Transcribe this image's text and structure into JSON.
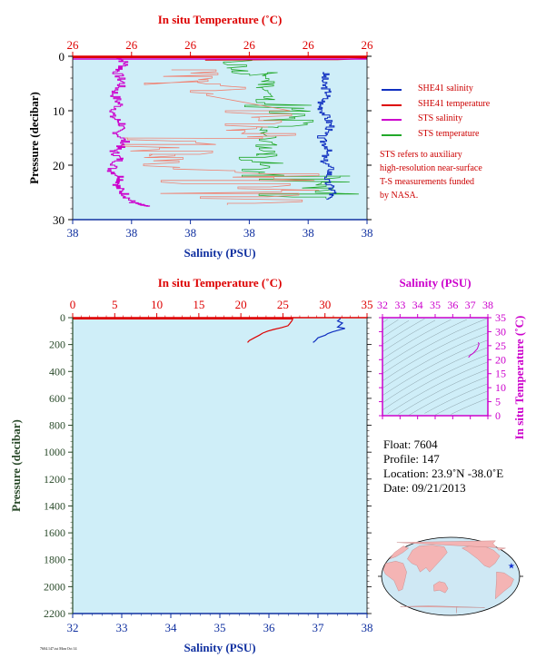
{
  "colors": {
    "plot_bg": "#cfeef8",
    "red": "#dd0000",
    "blue": "#1030c0",
    "magenta": "#cc00cc",
    "green": "#22a82a",
    "salmon": "#f08070",
    "dark_green": "#2a4a2a",
    "blue_axis": "#1030a0"
  },
  "chart_data": [
    {
      "type": "line",
      "panel": "near-surface",
      "top_axis_label": "In situ Temperature (˚C)",
      "top_tick_labels": [
        "26",
        "26",
        "26",
        "26",
        "26",
        "26"
      ],
      "bottom_axis_label": "Salinity (PSU)",
      "bottom_tick_labels": [
        "38",
        "38",
        "38",
        "38",
        "38",
        "38"
      ],
      "ylabel": "Pressure (decibar)",
      "y_tick_labels": [
        "0",
        "10",
        "20",
        "30"
      ],
      "ylim": [
        30,
        0
      ],
      "series": [
        {
          "name": "STS salinity",
          "x_units": "bottom axis fraction (0-1)",
          "points": [
            [
              0.16,
              0.2
            ],
            [
              0.18,
              1.5
            ],
            [
              0.15,
              3
            ],
            [
              0.17,
              5
            ],
            [
              0.14,
              7
            ],
            [
              0.16,
              9
            ],
            [
              0.13,
              11
            ],
            [
              0.17,
              12.5
            ],
            [
              0.15,
              14
            ],
            [
              0.18,
              16
            ],
            [
              0.14,
              17.5
            ],
            [
              0.16,
              19
            ],
            [
              0.13,
              21
            ],
            [
              0.17,
              22.5
            ],
            [
              0.15,
              24
            ],
            [
              0.18,
              25.5
            ],
            [
              0.2,
              26.8
            ],
            [
              0.23,
              27.3
            ],
            [
              0.25,
              27.6
            ]
          ]
        },
        {
          "name": "STS temperature",
          "x_units": "top axis fraction (0-1)",
          "points": [
            [
              0.0,
              0.5
            ],
            [
              0.4,
              1
            ],
            [
              0.55,
              2
            ],
            [
              0.65,
              4
            ],
            [
              0.55,
              6
            ],
            [
              0.68,
              8
            ],
            [
              0.56,
              10
            ],
            [
              0.72,
              12
            ],
            [
              0.6,
              14
            ],
            [
              0.68,
              16
            ],
            [
              0.56,
              18
            ],
            [
              0.72,
              20
            ],
            [
              0.6,
              22
            ],
            [
              0.9,
              24
            ],
            [
              1.0,
              25
            ],
            [
              0.75,
              26
            ],
            [
              0.6,
              26.5
            ]
          ]
        },
        {
          "name": "SHE41 temperature",
          "x_units": "top axis fraction (0-1)",
          "points": [
            [
              1.0,
              0.4
            ],
            [
              0.9,
              0.6
            ],
            [
              0.7,
              0.6
            ],
            [
              0.45,
              0.7
            ]
          ]
        },
        {
          "name": "SHE41 salinity",
          "x_units": "bottom axis fraction (0-1)",
          "points": [
            [
              0.86,
              3
            ],
            [
              0.85,
              5
            ],
            [
              0.87,
              7
            ],
            [
              0.84,
              9
            ],
            [
              0.86,
              11
            ],
            [
              0.88,
              13
            ],
            [
              0.84,
              15
            ],
            [
              0.87,
              17
            ],
            [
              0.85,
              19
            ],
            [
              0.88,
              21
            ],
            [
              0.86,
              23
            ],
            [
              0.89,
              25
            ],
            [
              0.86,
              26.5
            ]
          ]
        }
      ]
    },
    {
      "type": "line",
      "panel": "full-profile",
      "top_axis_label": "In situ Temperature (˚C)",
      "top_ticks": [
        0,
        5,
        10,
        15,
        20,
        25,
        30,
        35
      ],
      "top_range": [
        0,
        35
      ],
      "bottom_axis_label": "Salinity (PSU)",
      "bottom_ticks": [
        32,
        33,
        34,
        35,
        36,
        37,
        38
      ],
      "xlim": [
        32,
        38
      ],
      "ylabel": "Pressure (decibar)",
      "y_ticks": [
        0,
        200,
        400,
        600,
        800,
        1000,
        1200,
        1400,
        1600,
        1800,
        2000,
        2200
      ],
      "ylim": [
        2200,
        0
      ],
      "series": [
        {
          "name": "Temperature",
          "x_units": "degC",
          "points": [
            [
              26.2,
              0
            ],
            [
              26.1,
              20
            ],
            [
              25.8,
              45
            ],
            [
              25.6,
              60
            ],
            [
              24.8,
              75
            ],
            [
              23.9,
              88
            ],
            [
              23.2,
              100
            ],
            [
              22.6,
              115
            ],
            [
              22.2,
              130
            ],
            [
              21.6,
              150
            ],
            [
              21.0,
              170
            ],
            [
              20.8,
              185
            ]
          ]
        },
        {
          "name": "Salinity",
          "x_units": "PSU",
          "points": [
            [
              37.45,
              0
            ],
            [
              37.45,
              10
            ],
            [
              37.4,
              25
            ],
            [
              37.5,
              40
            ],
            [
              37.45,
              55
            ],
            [
              37.4,
              70
            ],
            [
              37.55,
              80
            ],
            [
              37.4,
              95
            ],
            [
              37.3,
              105
            ],
            [
              37.2,
              118
            ],
            [
              37.15,
              130
            ],
            [
              37.0,
              150
            ],
            [
              36.95,
              170
            ],
            [
              36.9,
              185
            ]
          ]
        }
      ]
    },
    {
      "type": "scatter",
      "panel": "T-S diagram",
      "top_axis_label": "Salinity (PSU)",
      "x_ticks": [
        32,
        33,
        34,
        35,
        36,
        37,
        38
      ],
      "xlim": [
        32,
        38
      ],
      "right_axis_label": "In situ Temperature (˚C)",
      "y_ticks": [
        0,
        5,
        10,
        15,
        20,
        25,
        30,
        35
      ],
      "ylim": [
        0,
        35
      ],
      "points": [
        [
          36.9,
          20.8
        ],
        [
          37.0,
          21.6
        ],
        [
          37.15,
          22.2
        ],
        [
          37.3,
          23.2
        ],
        [
          37.4,
          23.9
        ],
        [
          37.45,
          24.8
        ],
        [
          37.5,
          25.6
        ],
        [
          37.45,
          26.2
        ]
      ]
    }
  ],
  "legend": {
    "items": [
      {
        "label": "SHE41 salinity",
        "color_key": "blue"
      },
      {
        "label": "SHE41 temperature",
        "color_key": "red"
      },
      {
        "label": "STS salinity",
        "color_key": "magenta"
      },
      {
        "label": "STS temperature",
        "color_key": "green"
      }
    ]
  },
  "note": {
    "lines": [
      "STS refers to auxiliary",
      "high-resolution near-surface",
      "T-S measurements funded",
      "by NASA."
    ]
  },
  "info": {
    "float": "Float:  7604",
    "profile": "Profile:  147",
    "location": "Location:  23.9˚N  -38.0˚E",
    "date": "Date:  09/21/2013"
  },
  "map": {
    "marker_lat": 23.9,
    "marker_lon": -38.0
  },
  "footer": "7604.147.txt Mon Oct 14"
}
